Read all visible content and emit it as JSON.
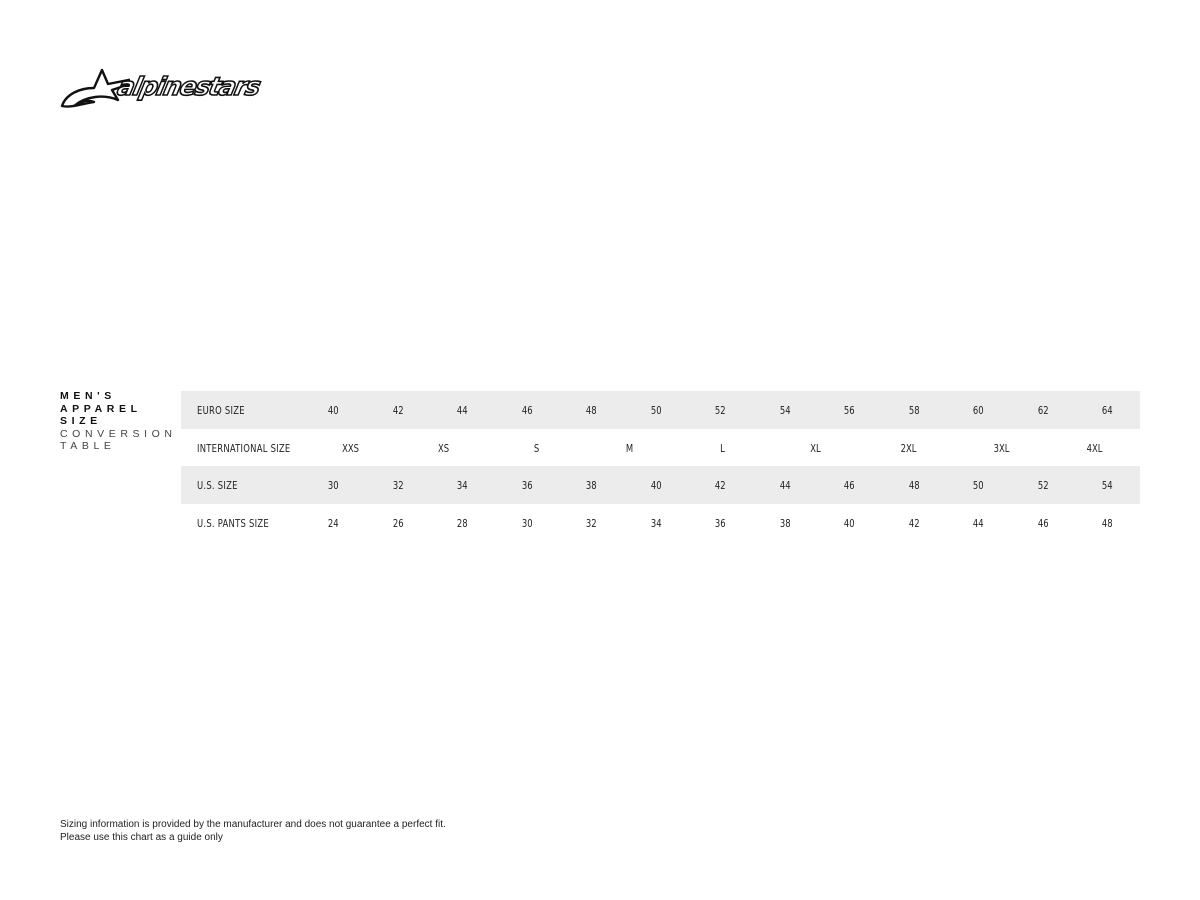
{
  "logo": {
    "text": "alpinestars"
  },
  "title": {
    "line1": "MEN'S",
    "line2": "APPAREL",
    "line3": "SIZE",
    "line4": "CONVERSION",
    "line5": "TABLE"
  },
  "table": {
    "rows": [
      {
        "label": "EURO SIZE",
        "values": [
          "40",
          "42",
          "44",
          "46",
          "48",
          "50",
          "52",
          "54",
          "56",
          "58",
          "60",
          "62",
          "64"
        ]
      },
      {
        "label": "INTERNATIONAL SIZE",
        "values": [
          "XXS",
          "XS",
          "S",
          "M",
          "L",
          "XL",
          "2XL",
          "3XL",
          "4XL"
        ]
      },
      {
        "label": "U.S. SIZE",
        "values": [
          "30",
          "32",
          "34",
          "36",
          "38",
          "40",
          "42",
          "44",
          "46",
          "48",
          "50",
          "52",
          "54"
        ]
      },
      {
        "label": "U.S. PANTS SIZE",
        "values": [
          "24",
          "26",
          "28",
          "30",
          "32",
          "34",
          "36",
          "38",
          "40",
          "42",
          "44",
          "46",
          "48"
        ]
      }
    ]
  },
  "footer": {
    "line1": "Sizing information is provided by the manufacturer and does not guarantee a perfect fit.",
    "line2": "Please use this chart as a guide only"
  }
}
